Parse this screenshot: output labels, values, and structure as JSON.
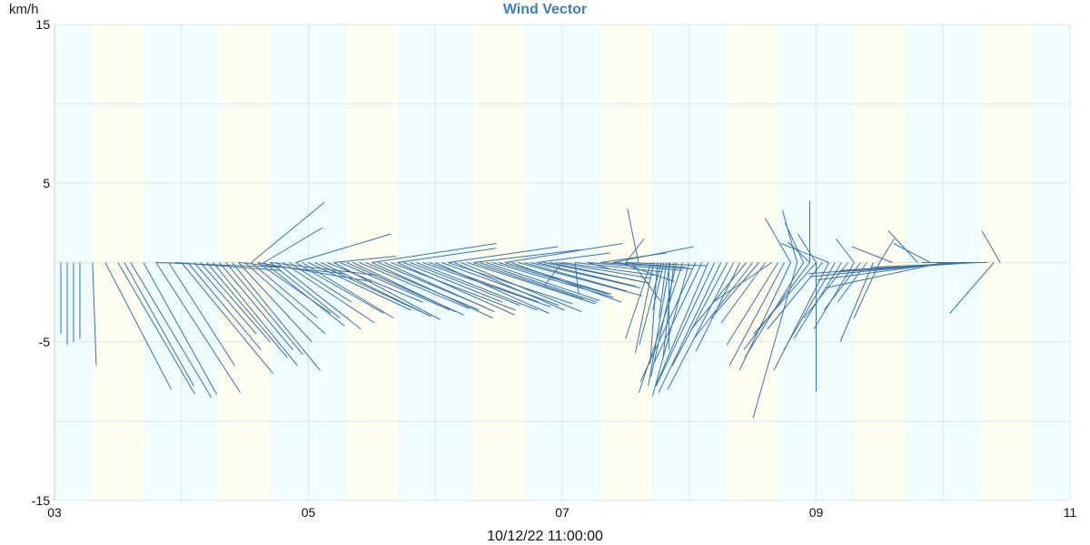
{
  "chart_data": {
    "type": "vector",
    "title": "Wind Vector",
    "ylabel": "km/h",
    "ylim": [
      -15,
      15
    ],
    "y_ticks": [
      "15",
      "5",
      "-5",
      "-15"
    ],
    "y_tick_values": [
      15,
      5,
      -5,
      -15
    ],
    "x_ticks": [
      "03",
      "05",
      "07",
      "09",
      "11"
    ],
    "x_tick_values": [
      3,
      5,
      7,
      9,
      11
    ],
    "xlim": [
      3,
      11
    ],
    "footer": "10/12/22 11:00:00",
    "marker": "*",
    "grid": true,
    "band_colors": [
      "#effdfd",
      "#fdfeef"
    ],
    "line_color": "#3d72a4",
    "vectors": [
      [
        3.05,
        0,
        -4.5
      ],
      [
        3.1,
        0,
        -5.2
      ],
      [
        3.15,
        0,
        -5.0
      ],
      [
        3.2,
        0,
        -4.8
      ],
      [
        3.3,
        0.1,
        -6.5
      ],
      [
        3.4,
        1.8,
        -8.0
      ],
      [
        3.5,
        2.1,
        -8.3
      ],
      [
        3.55,
        1.9,
        -7.8
      ],
      [
        3.6,
        2.2,
        -8.5
      ],
      [
        3.7,
        2.0,
        -8.3
      ],
      [
        3.8,
        2.3,
        -8.2
      ],
      [
        3.9,
        1.8,
        -6.5
      ],
      [
        4.0,
        2.5,
        -7.0
      ],
      [
        4.05,
        2.0,
        -5.5
      ],
      [
        4.1,
        1.7,
        -4.5
      ],
      [
        4.15,
        1.9,
        -5.0
      ],
      [
        4.2,
        2.2,
        -6.0
      ],
      [
        4.25,
        2.3,
        -6.5
      ],
      [
        4.3,
        2.0,
        -5.5
      ],
      [
        4.35,
        2.1,
        -5.8
      ],
      [
        4.4,
        2.4,
        -6.8
      ],
      [
        4.45,
        2.0,
        -5.0
      ],
      [
        4.5,
        2.2,
        -4.5
      ],
      [
        4.55,
        1.8,
        -3.5
      ],
      [
        4.6,
        2.0,
        -3.2
      ],
      [
        4.65,
        2.2,
        -4.0
      ],
      [
        4.7,
        1.9,
        -3.5
      ],
      [
        4.75,
        2.3,
        -4.2
      ],
      [
        4.8,
        2.5,
        -3.8
      ],
      [
        4.85,
        1.7,
        -2.5
      ],
      [
        4.9,
        2.4,
        -3.2
      ],
      [
        4.95,
        2.5,
        -3.5
      ],
      [
        5.0,
        2.8,
        -3.0
      ],
      [
        5.05,
        2.9,
        -3.1
      ],
      [
        5.1,
        3.0,
        -3.4
      ],
      [
        5.15,
        2.6,
        -2.5
      ],
      [
        5.2,
        2.9,
        -3.6
      ],
      [
        5.25,
        3.0,
        -3.0
      ],
      [
        5.3,
        3.2,
        -3.3
      ],
      [
        5.35,
        2.8,
        -3.1
      ],
      [
        5.4,
        3.0,
        -2.9
      ],
      [
        5.45,
        3.1,
        -3.0
      ],
      [
        5.5,
        3.3,
        -3.5
      ],
      [
        5.55,
        2.9,
        -2.8
      ],
      [
        5.6,
        3.0,
        -3.1
      ],
      [
        5.65,
        3.4,
        -3.0
      ],
      [
        5.7,
        3.2,
        -3.3
      ],
      [
        5.75,
        2.7,
        -2.5
      ],
      [
        5.8,
        3.0,
        -2.7
      ],
      [
        5.85,
        3.3,
        -3.0
      ],
      [
        5.9,
        3.5,
        -2.8
      ],
      [
        5.95,
        3.0,
        -2.5
      ],
      [
        6.0,
        3.1,
        -3.2
      ],
      [
        6.05,
        3.2,
        -2.7
      ],
      [
        6.1,
        3.4,
        -2.6
      ],
      [
        6.15,
        3.0,
        -3.0
      ],
      [
        6.2,
        3.3,
        -3.1
      ],
      [
        6.25,
        3.5,
        -2.6
      ],
      [
        6.3,
        3.0,
        -2.3
      ],
      [
        6.35,
        3.2,
        -2.5
      ],
      [
        6.4,
        3.1,
        -2.4
      ],
      [
        6.45,
        3.3,
        -2.2
      ],
      [
        6.5,
        3.0,
        -2.0
      ],
      [
        6.55,
        2.9,
        -2.0
      ],
      [
        6.6,
        3.0,
        -2.5
      ],
      [
        6.65,
        3.4,
        -2.1
      ],
      [
        6.7,
        2.8,
        -1.8
      ],
      [
        6.75,
        3.0,
        -1.6
      ],
      [
        6.8,
        2.7,
        -1.5
      ],
      [
        6.85,
        2.9,
        -1.3
      ],
      [
        6.9,
        2.5,
        -1.2
      ],
      [
        6.95,
        2.6,
        -1.0
      ],
      [
        7.0,
        2.5,
        -0.8
      ],
      [
        7.1,
        2.4,
        -0.6
      ],
      [
        7.2,
        2.6,
        -0.5
      ],
      [
        7.3,
        2.5,
        -0.4
      ],
      [
        7.4,
        2.0,
        -0.3
      ],
      [
        7.5,
        2.2,
        -0.2
      ],
      [
        3.8,
        3.4,
        -0.3
      ],
      [
        3.95,
        2.9,
        -0.5
      ],
      [
        4.45,
        2.9,
        -0.7
      ],
      [
        4.6,
        3.1,
        -1.2
      ],
      [
        4.7,
        2.9,
        -0.8
      ],
      [
        4.55,
        2.0,
        3.8
      ],
      [
        4.65,
        1.6,
        2.2
      ],
      [
        4.9,
        2.6,
        1.8
      ],
      [
        5.2,
        1.7,
        0.4
      ],
      [
        5.5,
        3.4,
        1.2
      ],
      [
        5.7,
        2.7,
        0.9
      ],
      [
        6.1,
        3.0,
        1.0
      ],
      [
        6.3,
        2.9,
        0.8
      ],
      [
        6.55,
        3.2,
        1.2
      ],
      [
        6.8,
        2.0,
        0.6
      ],
      [
        7.0,
        -0.5,
        -1.5
      ],
      [
        7.1,
        0.1,
        -2.0
      ],
      [
        7.2,
        0.6,
        -0.4
      ],
      [
        7.3,
        1.8,
        0.6
      ],
      [
        7.4,
        2.2,
        1.0
      ],
      [
        7.5,
        0.5,
        1.5
      ],
      [
        7.6,
        -0.3,
        3.4
      ],
      [
        7.45,
        1.5,
        -1.2
      ],
      [
        7.55,
        0.8,
        -2.5
      ],
      [
        7.7,
        -0.7,
        -4.8
      ],
      [
        7.72,
        -0.5,
        -5.7
      ],
      [
        7.75,
        -0.2,
        -6.4
      ],
      [
        7.78,
        -0.6,
        -5.2
      ],
      [
        7.8,
        -0.3,
        -3.0
      ],
      [
        7.82,
        -0.2,
        -3.5
      ],
      [
        7.84,
        0,
        -5.5
      ],
      [
        7.85,
        -0.6,
        -7.8
      ],
      [
        7.88,
        -0.3,
        -6.0
      ],
      [
        7.9,
        -0.7,
        -7.2
      ],
      [
        7.95,
        -1.2,
        -8.2
      ],
      [
        8.0,
        -1.0,
        -8.4
      ],
      [
        8.05,
        -1.5,
        -7.5
      ],
      [
        8.1,
        -1.3,
        -6.3
      ],
      [
        8.15,
        -1.4,
        -7.6
      ],
      [
        8.2,
        -1.6,
        -7.8
      ],
      [
        8.25,
        -1.7,
        -8.2
      ],
      [
        8.3,
        -1.5,
        -6.5
      ],
      [
        8.35,
        -1.8,
        -8.0
      ],
      [
        8.4,
        -1.2,
        -5.6
      ],
      [
        8.45,
        -1.5,
        -4.2
      ],
      [
        8.5,
        -1.6,
        -4.8
      ],
      [
        8.55,
        -1.3,
        -3.5
      ],
      [
        8.6,
        -1.2,
        -3.8
      ],
      [
        8.65,
        -1.6,
        -2.5
      ],
      [
        8.7,
        -1.4,
        -5.2
      ],
      [
        8.75,
        -1.5,
        -6.5
      ],
      [
        8.8,
        -1.4,
        -6.8
      ],
      [
        8.85,
        -1.2,
        -9.8
      ],
      [
        8.9,
        -1.6,
        -6.0
      ],
      [
        8.95,
        -1.8,
        -5.5
      ],
      [
        9.0,
        -1.7,
        -4.5
      ],
      [
        9.05,
        -1.5,
        -4.2
      ],
      [
        9.1,
        -1.5,
        -6.8
      ],
      [
        9.15,
        -1.4,
        -5.5
      ],
      [
        9.2,
        -1.3,
        -4.8
      ],
      [
        9.25,
        -1.2,
        -3.5
      ],
      [
        9.3,
        -1.1,
        -4.2
      ],
      [
        9.35,
        -1.0,
        -3.0
      ],
      [
        9.4,
        -0.8,
        -2.5
      ],
      [
        9.45,
        -0.9,
        -5.0
      ],
      [
        9.5,
        -0.7,
        -3.5
      ],
      [
        8.8,
        -0.7,
        2.8
      ],
      [
        8.85,
        -0.4,
        3.3
      ],
      [
        8.9,
        -0.5,
        2.5
      ],
      [
        8.95,
        -0.6,
        1.3
      ],
      [
        9.0,
        -0.5,
        1.8
      ],
      [
        8.95,
        0,
        3.9
      ],
      [
        9.0,
        0,
        -8.1
      ],
      [
        9.1,
        -1.3,
        1.2
      ],
      [
        9.3,
        -0.5,
        1.5
      ],
      [
        9.5,
        0.4,
        1.5
      ],
      [
        9.6,
        -1.1,
        1.0
      ],
      [
        9.8,
        -0.8,
        2.0
      ],
      [
        9.9,
        -1.0,
        1.2
      ],
      [
        10.0,
        -3.2,
        -1.6
      ],
      [
        10.05,
        -3.6,
        -1.1
      ],
      [
        10.1,
        -4.0,
        -0.9
      ],
      [
        10.15,
        -4.2,
        -0.7
      ],
      [
        10.2,
        -3.5,
        -0.5
      ],
      [
        10.25,
        -3.8,
        -0.6
      ],
      [
        10.3,
        -3.0,
        -0.3
      ],
      [
        10.35,
        -1.8,
        0
      ],
      [
        10.4,
        -1.2,
        -3.2
      ],
      [
        10.45,
        -0.5,
        2.0
      ]
    ]
  }
}
